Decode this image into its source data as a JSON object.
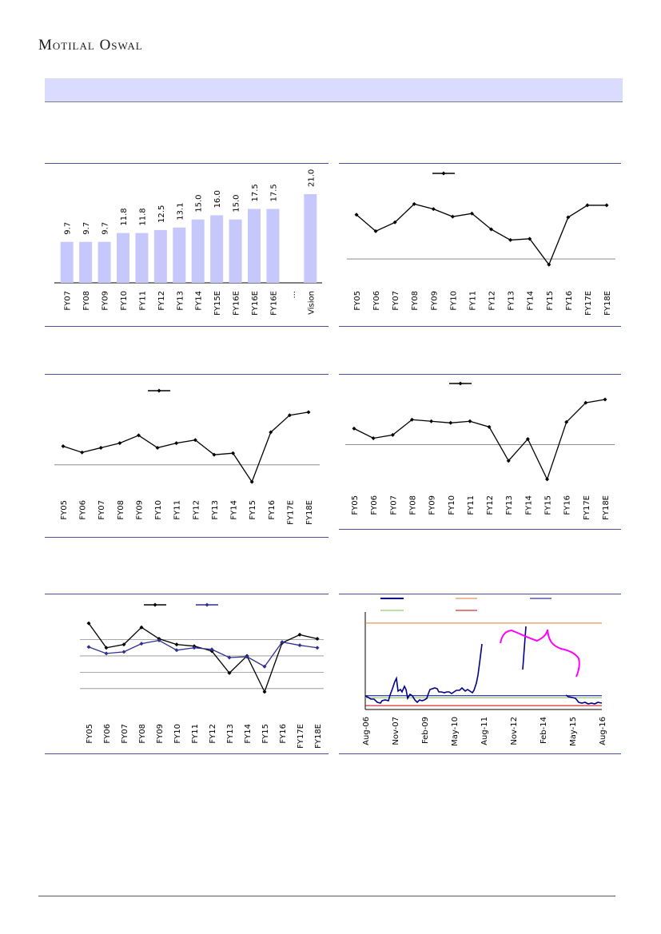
{
  "header": {
    "brand": "Motilal Oswal"
  },
  "section": {
    "title": ""
  },
  "colors": {
    "bar": "#c6c8fb",
    "rule": "#4b4f9a",
    "series1": "#000000",
    "series2": "#2f2f8f",
    "blue_line": "#00008b",
    "orange": "#e07a2a",
    "green": "#7bbf4a",
    "red": "#c00000",
    "magenta": "#ff00ff"
  },
  "chart_data": [
    {
      "type": "bar",
      "categories": [
        "FY07",
        "FY08",
        "FY09",
        "FY10",
        "FY11",
        "FY12",
        "FY13",
        "FY14",
        "FY15E",
        "FY16E",
        "FY16E",
        "FY16E",
        "...",
        "Vision"
      ],
      "values": [
        9.7,
        9.7,
        9.7,
        11.8,
        11.8,
        12.5,
        13.1,
        15.0,
        16.0,
        15.0,
        17.5,
        17.5,
        null,
        21.0
      ],
      "data_labels": [
        "9.7",
        "9.7",
        "9.7",
        "11.8",
        "11.8",
        "12.5",
        "13.1",
        "15.0",
        "16.0",
        "15.0",
        "17.5",
        "17.5",
        "",
        "21.0"
      ],
      "ylim": [
        0,
        21.0
      ]
    },
    {
      "type": "line",
      "categories": [
        "FY05",
        "FY06",
        "FY07",
        "FY08",
        "FY09",
        "FY10",
        "FY11",
        "FY12",
        "FY13",
        "FY14",
        "FY15",
        "FY16",
        "FY17E",
        "FY18E"
      ],
      "series": [
        {
          "values": [
            15.0,
            12.4,
            13.8,
            16.7,
            15.9,
            14.7,
            15.2,
            12.7,
            11.0,
            11.2,
            7.1,
            14.6,
            16.5,
            16.5
          ]
        }
      ],
      "reference": 8.0,
      "ylim": [
        6.0,
        17.5
      ],
      "legend": "top"
    },
    {
      "type": "line",
      "categories": [
        "FY05",
        "FY06",
        "FY07",
        "FY08",
        "FY09",
        "FY10",
        "FY11",
        "FY12",
        "FY13",
        "FY14",
        "FY15",
        "FY16",
        "FY17E",
        "FY18E"
      ],
      "series": [
        {
          "values": [
            10.5,
            9.7,
            10.3,
            10.9,
            11.9,
            10.3,
            10.9,
            11.3,
            9.4,
            9.6,
            5.9,
            12.3,
            14.5,
            14.9
          ]
        }
      ],
      "reference": 8.1,
      "ylim": [
        5.5,
        15.5
      ],
      "legend": "top"
    },
    {
      "type": "line",
      "categories": [
        "FY05",
        "FY06",
        "FY07",
        "FY08",
        "FY09",
        "FY10",
        "FY11",
        "FY12",
        "FY13",
        "FY14",
        "FY15",
        "FY16",
        "FY17E",
        "FY18E"
      ],
      "series": [
        {
          "values": [
            14.0,
            12.8,
            13.2,
            15.1,
            14.9,
            14.7,
            14.9,
            14.2,
            10.0,
            12.7,
            7.7,
            14.8,
            17.2,
            17.6
          ]
        }
      ],
      "reference": 12.0,
      "ylim": [
        7.0,
        18.0
      ],
      "legend": "top"
    },
    {
      "type": "line",
      "categories": [
        "FY05",
        "FY06",
        "FY07",
        "FY08",
        "FY09",
        "FY10",
        "FY11",
        "FY12",
        "FY13",
        "FY14",
        "FY15",
        "FY16",
        "FY17E",
        "FY18E"
      ],
      "series": [
        {
          "values": [
            18.0,
            15.0,
            15.4,
            17.5,
            16.1,
            15.4,
            15.2,
            14.6,
            11.9,
            14.0,
            9.6,
            15.6,
            16.6,
            16.1
          ]
        },
        {
          "values": [
            15.1,
            14.3,
            14.5,
            15.5,
            15.9,
            14.7,
            15.0,
            14.8,
            13.8,
            13.9,
            12.7,
            15.7,
            15.3,
            15.0
          ]
        }
      ],
      "gridlines": [
        10,
        12,
        14,
        16
      ],
      "ylim": [
        9.0,
        18.5
      ],
      "legend": "top"
    },
    {
      "type": "line",
      "x_ticks": [
        "Aug-06",
        "Nov-07",
        "Feb-09",
        "May-10",
        "Aug-11",
        "Nov-12",
        "Feb-14",
        "May-15",
        "Aug-16"
      ],
      "reference_lines": [
        {
          "value": 48,
          "color": "orange"
        },
        {
          "value": 11,
          "color": "blue"
        },
        {
          "value": 10,
          "color": "green"
        },
        {
          "value": 6,
          "color": "red"
        }
      ],
      "ylim": [
        4,
        52
      ],
      "legend": "top"
    }
  ]
}
